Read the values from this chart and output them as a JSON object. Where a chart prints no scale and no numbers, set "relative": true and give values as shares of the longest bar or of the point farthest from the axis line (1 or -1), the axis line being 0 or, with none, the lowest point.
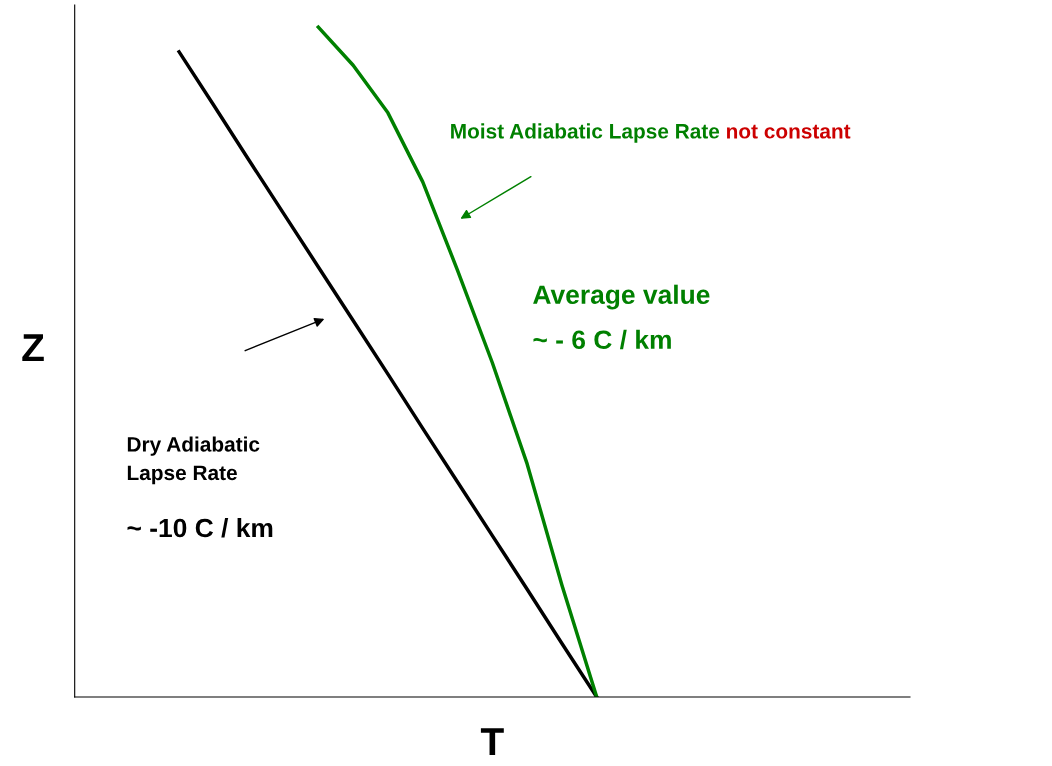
{
  "chart_data": {
    "type": "line",
    "relative": true,
    "xlabel": "T",
    "ylabel": "Z",
    "categories": [
      null,
      null,
      null,
      null,
      null,
      null,
      null,
      null,
      null,
      null,
      null,
      null,
      null,
      null,
      null,
      null,
      null,
      null,
      null,
      null,
      null,
      null,
      null,
      null,
      null
    ],
    "series": [
      {
        "color": "#000000",
        "values": [
          null,
          null,
          null,
          0.963,
          0.883,
          0.802,
          0.722,
          0.642,
          0.562,
          0.482,
          0.401,
          0.321,
          0.241,
          0.161,
          0.08,
          0,
          null,
          null,
          null,
          null,
          null,
          null,
          null,
          null,
          null
        ]
      },
      {
        "color": "#008000",
        "values": [
          null,
          null,
          null,
          null,
          null,
          null,
          null,
          1,
          0.943,
          0.872,
          0.769,
          0.637,
          0.499,
          0.348,
          0.167,
          0,
          null,
          null,
          null,
          null,
          null,
          null,
          null,
          null,
          null
        ]
      }
    ],
    "annotations": [
      "Moist Adiabatic Lapse Rate",
      "not constant",
      "Average value",
      "~ - 6 C / km",
      "Dry Adiabatic\nLapse Rate",
      "~ -10 C / km"
    ]
  }
}
